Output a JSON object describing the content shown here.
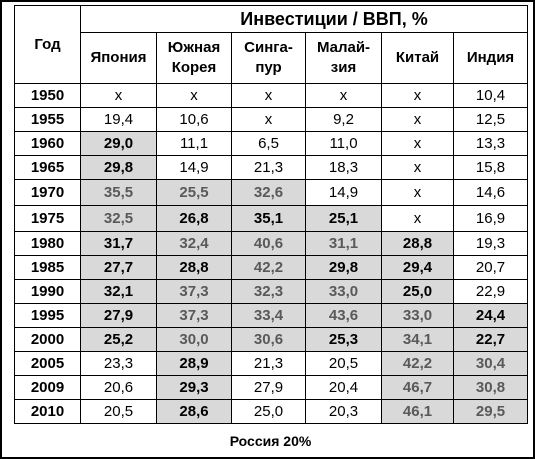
{
  "title": "Инвестиции / ВВП, %",
  "year_header": "Год",
  "columns": [
    {
      "line1": "Япония",
      "line2": ""
    },
    {
      "line1": "Южная",
      "line2": "Корея"
    },
    {
      "line1": "Синга-",
      "line2": "пур"
    },
    {
      "line1": "Малай-",
      "line2": "зия"
    },
    {
      "line1": "Китай",
      "line2": ""
    },
    {
      "line1": "Индия",
      "line2": ""
    }
  ],
  "rows": [
    {
      "year": "1950",
      "cells": [
        {
          "v": "x",
          "h": false,
          "d": false
        },
        {
          "v": "x",
          "h": false,
          "d": false
        },
        {
          "v": "x",
          "h": false,
          "d": false
        },
        {
          "v": "x",
          "h": false,
          "d": false
        },
        {
          "v": "x",
          "h": false,
          "d": false
        },
        {
          "v": "10,4",
          "h": false,
          "d": false
        }
      ]
    },
    {
      "year": "1955",
      "cells": [
        {
          "v": "19,4",
          "h": false,
          "d": false
        },
        {
          "v": "10,6",
          "h": false,
          "d": false
        },
        {
          "v": "x",
          "h": false,
          "d": false
        },
        {
          "v": "9,2",
          "h": false,
          "d": false
        },
        {
          "v": "x",
          "h": false,
          "d": false
        },
        {
          "v": "12,5",
          "h": false,
          "d": false
        }
      ]
    },
    {
      "year": "1960",
      "cells": [
        {
          "v": "29,0",
          "h": true,
          "d": false
        },
        {
          "v": "11,1",
          "h": false,
          "d": false
        },
        {
          "v": "6,5",
          "h": false,
          "d": false
        },
        {
          "v": "11,0",
          "h": false,
          "d": false
        },
        {
          "v": "x",
          "h": false,
          "d": false
        },
        {
          "v": "13,3",
          "h": false,
          "d": false
        }
      ]
    },
    {
      "year": "1965",
      "cells": [
        {
          "v": "29,8",
          "h": true,
          "d": false
        },
        {
          "v": "14,9",
          "h": false,
          "d": false
        },
        {
          "v": "21,3",
          "h": false,
          "d": false
        },
        {
          "v": "18,3",
          "h": false,
          "d": false
        },
        {
          "v": "x",
          "h": false,
          "d": false
        },
        {
          "v": "15,8",
          "h": false,
          "d": false
        }
      ]
    },
    {
      "year": "1970",
      "cells": [
        {
          "v": "35,5",
          "h": true,
          "d": true
        },
        {
          "v": "25,5",
          "h": true,
          "d": true
        },
        {
          "v": "32,6",
          "h": true,
          "d": true
        },
        {
          "v": "14,9",
          "h": false,
          "d": false
        },
        {
          "v": "x",
          "h": false,
          "d": false
        },
        {
          "v": "14,6",
          "h": false,
          "d": false
        }
      ]
    },
    {
      "year": "1975",
      "cells": [
        {
          "v": "32,5",
          "h": true,
          "d": true
        },
        {
          "v": "26,8",
          "h": true,
          "d": false
        },
        {
          "v": "35,1",
          "h": true,
          "d": false
        },
        {
          "v": "25,1",
          "h": true,
          "d": false
        },
        {
          "v": "x",
          "h": false,
          "d": false
        },
        {
          "v": "16,9",
          "h": false,
          "d": false
        }
      ]
    },
    {
      "year": "1980",
      "cells": [
        {
          "v": "31,7",
          "h": true,
          "d": false
        },
        {
          "v": "32,4",
          "h": true,
          "d": true
        },
        {
          "v": "40,6",
          "h": true,
          "d": true
        },
        {
          "v": "31,1",
          "h": true,
          "d": true
        },
        {
          "v": "28,8",
          "h": true,
          "d": false
        },
        {
          "v": "19,3",
          "h": false,
          "d": false
        }
      ]
    },
    {
      "year": "1985",
      "cells": [
        {
          "v": "27,7",
          "h": true,
          "d": false
        },
        {
          "v": "28,8",
          "h": true,
          "d": false
        },
        {
          "v": "42,2",
          "h": true,
          "d": true
        },
        {
          "v": "29,8",
          "h": true,
          "d": false
        },
        {
          "v": "29,4",
          "h": true,
          "d": false
        },
        {
          "v": "20,7",
          "h": false,
          "d": false
        }
      ]
    },
    {
      "year": "1990",
      "cells": [
        {
          "v": "32,1",
          "h": true,
          "d": false
        },
        {
          "v": "37,3",
          "h": true,
          "d": true
        },
        {
          "v": "32,3",
          "h": true,
          "d": true
        },
        {
          "v": "33,0",
          "h": true,
          "d": true
        },
        {
          "v": "25,0",
          "h": true,
          "d": false
        },
        {
          "v": "22,9",
          "h": false,
          "d": false
        }
      ]
    },
    {
      "year": "1995",
      "cells": [
        {
          "v": "27,9",
          "h": true,
          "d": false
        },
        {
          "v": "37,3",
          "h": true,
          "d": true
        },
        {
          "v": "33,4",
          "h": true,
          "d": true
        },
        {
          "v": "43,6",
          "h": true,
          "d": true
        },
        {
          "v": "33,0",
          "h": true,
          "d": true
        },
        {
          "v": "24,4",
          "h": true,
          "d": false
        }
      ]
    },
    {
      "year": "2000",
      "cells": [
        {
          "v": "25,2",
          "h": true,
          "d": false
        },
        {
          "v": "30,0",
          "h": true,
          "d": true
        },
        {
          "v": "30,6",
          "h": true,
          "d": true
        },
        {
          "v": "25,3",
          "h": true,
          "d": false
        },
        {
          "v": "34,1",
          "h": true,
          "d": true
        },
        {
          "v": "22,7",
          "h": true,
          "d": false
        }
      ]
    },
    {
      "year": "2005",
      "cells": [
        {
          "v": "23,3",
          "h": false,
          "d": false
        },
        {
          "v": "28,9",
          "h": true,
          "d": false
        },
        {
          "v": "21,3",
          "h": false,
          "d": false
        },
        {
          "v": "20,5",
          "h": false,
          "d": false
        },
        {
          "v": "42,2",
          "h": true,
          "d": true
        },
        {
          "v": "30,4",
          "h": true,
          "d": true
        }
      ]
    },
    {
      "year": "2009",
      "cells": [
        {
          "v": "20,6",
          "h": false,
          "d": false
        },
        {
          "v": "29,3",
          "h": true,
          "d": false
        },
        {
          "v": "27,9",
          "h": false,
          "d": false
        },
        {
          "v": "20,4",
          "h": false,
          "d": false
        },
        {
          "v": "46,7",
          "h": true,
          "d": true
        },
        {
          "v": "30,8",
          "h": true,
          "d": true
        }
      ]
    },
    {
      "year": "2010",
      "cells": [
        {
          "v": "20,5",
          "h": false,
          "d": false
        },
        {
          "v": "28,6",
          "h": true,
          "d": false
        },
        {
          "v": "25,0",
          "h": false,
          "d": false
        },
        {
          "v": "20,3",
          "h": false,
          "d": false
        },
        {
          "v": "46,1",
          "h": true,
          "d": true
        },
        {
          "v": "29,5",
          "h": true,
          "d": true
        }
      ]
    }
  ],
  "footer": "Россия 20%",
  "colors": {
    "highlight_fill": "#d9d9d9",
    "dim_text": "#595959",
    "border": "#000000"
  }
}
